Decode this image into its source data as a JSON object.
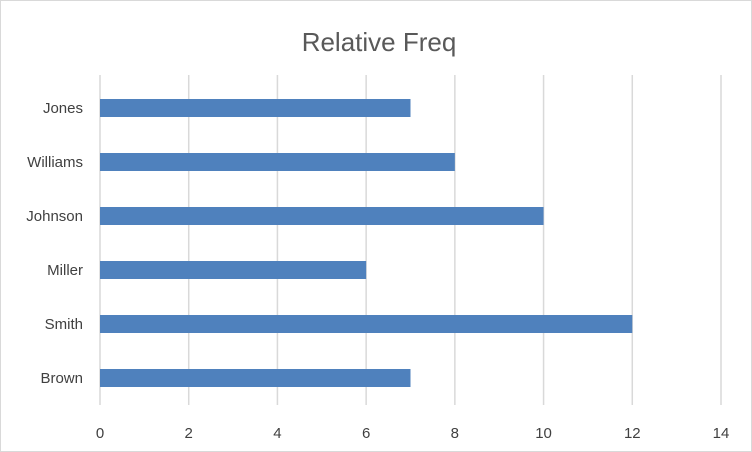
{
  "chart_data": {
    "type": "bar",
    "orientation": "horizontal",
    "title": "Relative Freq",
    "xlabel": "",
    "ylabel": "",
    "categories": [
      "Jones",
      "Williams",
      "Johnson",
      "Miller",
      "Smith",
      "Brown"
    ],
    "values": [
      7,
      8,
      10,
      6,
      12,
      7
    ],
    "xlim": [
      0,
      14
    ],
    "x_ticks": [
      0,
      2,
      4,
      6,
      8,
      10,
      12,
      14
    ],
    "grid": "vertical",
    "legend": "none",
    "bar_color": "#4f81bd"
  }
}
